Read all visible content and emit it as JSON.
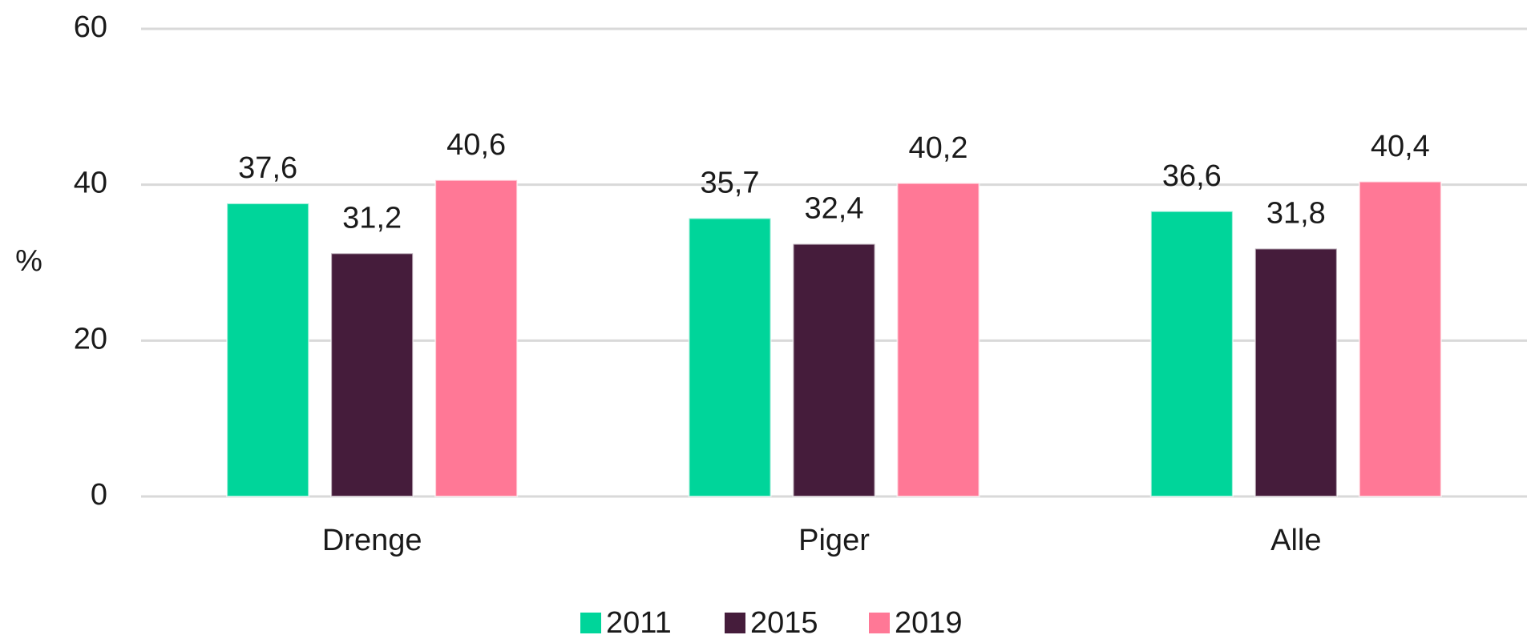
{
  "chart_data": {
    "type": "bar",
    "y_label": "%",
    "categories": [
      "Drenge",
      "Piger",
      "Alle"
    ],
    "series": [
      {
        "name": "2011",
        "color": "#00d59a",
        "values": [
          37.6,
          35.7,
          36.6
        ],
        "value_labels": [
          "37,6",
          "35,7",
          "36,6"
        ]
      },
      {
        "name": "2015",
        "color": "#451c3b",
        "values": [
          31.2,
          32.4,
          31.8
        ],
        "value_labels": [
          "31,2",
          "32,4",
          "31,8"
        ]
      },
      {
        "name": "2019",
        "color": "#ff7896",
        "values": [
          40.6,
          40.2,
          40.4
        ],
        "value_labels": [
          "40,6",
          "40,2",
          "40,4"
        ]
      }
    ],
    "ylim": [
      0,
      60
    ],
    "yticks": [
      0,
      20,
      40,
      60
    ],
    "grid": true,
    "legend": "bottom"
  }
}
